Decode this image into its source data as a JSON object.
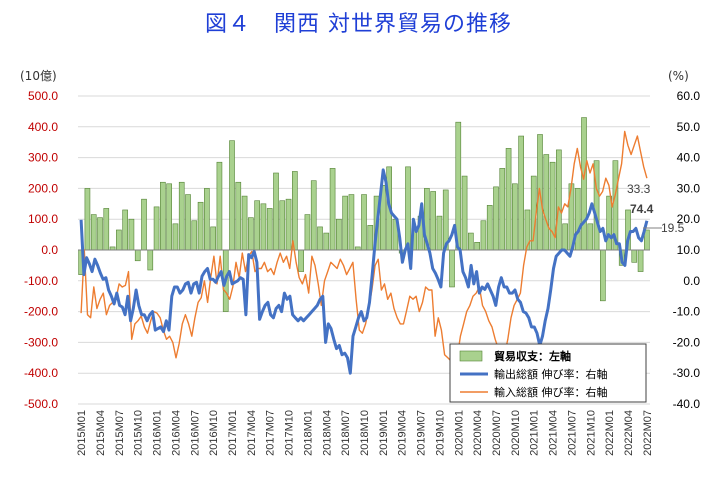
{
  "chart_data": {
    "type": "bar+line",
    "title": "図４　関西 対世界貿易の推移",
    "left_unit": "(10億)",
    "right_unit": "(%)",
    "ylim_left": [
      -500,
      500
    ],
    "ylim_right": [
      -40,
      60
    ],
    "left_ticks": [
      "500.0",
      "400.0",
      "300.0",
      "200.0",
      "100.0",
      "0.0",
      "-100.0",
      "-200.0",
      "-300.0",
      "-400.0",
      "-500.0"
    ],
    "right_ticks": [
      "60.0",
      "50.0",
      "40.0",
      "30.0",
      "20.0",
      "10.0",
      "0.0",
      "-10.0",
      "-20.0",
      "-30.0",
      "-40.0"
    ],
    "x_start": {
      "year": 2015,
      "month": 1
    },
    "x_labels": [
      "2015M01",
      "2015M04",
      "2015M07",
      "2015M10",
      "2016M01",
      "2016M04",
      "2016M07",
      "2016M10",
      "2017M01",
      "2017M04",
      "2017M07",
      "2017M10",
      "2018M01",
      "2018M04",
      "2018M07",
      "2018M10",
      "2019M01",
      "2019M04",
      "2019M07",
      "2019M10",
      "2020M01",
      "2020M04",
      "2020M07",
      "2020M10",
      "2021M01",
      "2021M04",
      "2021M07",
      "2021M10",
      "2022M01",
      "2022M04",
      "2022M07"
    ],
    "series": [
      {
        "name": "貿易収支：左軸",
        "type": "bar",
        "axis": "left",
        "color": "#a9d18e",
        "values": [
          -80,
          200,
          115,
          105,
          135,
          10,
          65,
          130,
          100,
          -35,
          165,
          -65,
          140,
          220,
          215,
          85,
          220,
          180,
          95,
          155,
          200,
          75,
          285,
          -200,
          355,
          220,
          175,
          105,
          160,
          150,
          135,
          250,
          160,
          165,
          255,
          -70,
          115,
          225,
          75,
          55,
          265,
          100,
          175,
          180,
          10,
          180,
          80,
          175,
          210,
          270,
          100,
          -10,
          270,
          70,
          110,
          200,
          190,
          110,
          195,
          -120,
          415,
          240,
          55,
          25,
          95,
          145,
          205,
          265,
          330,
          215,
          370,
          130,
          240,
          375,
          310,
          285,
          325,
          85,
          215,
          200,
          430,
          85,
          290,
          -165,
          175,
          290,
          -50,
          130,
          -40,
          -70,
          65
        ]
      },
      {
        "name": "輸出総額 伸び率：右軸",
        "type": "line",
        "axis": "right",
        "color": "#4472c4",
        "values": [
          19.8,
          2,
          7.5,
          5.5,
          3,
          7,
          5,
          2.5,
          0.5,
          1,
          -3,
          -5,
          -7.5,
          -4,
          -8,
          -8.5,
          -11,
          -5,
          -13,
          -9,
          -3,
          -8,
          -11,
          -11,
          -13,
          -11,
          -10,
          -16,
          -15.5,
          -15,
          -16.5,
          -13,
          -16,
          -5,
          -2,
          -2,
          -4,
          -3,
          -1,
          -0.5,
          -4,
          -1,
          -0.5,
          -4,
          1.5,
          3,
          4,
          0.5,
          0.5,
          -0.5,
          1.5,
          3,
          -1.5,
          1.5,
          3,
          -1,
          -0.5,
          0,
          1,
          0.5,
          -11,
          8.5,
          7.5,
          9.5,
          6,
          -12.5,
          -10,
          -8,
          -7,
          -11,
          -12,
          -9,
          -8,
          -10,
          -4,
          -6,
          -5,
          -11,
          -12,
          -13,
          -12,
          -13,
          -12,
          -11,
          -10,
          -9,
          -8,
          -6,
          -5,
          -20,
          -14,
          -15.5,
          -19,
          -22,
          -21,
          -24,
          -23.5,
          -25,
          -30,
          -18,
          -15,
          -12,
          -10,
          -13,
          -12,
          -7,
          2,
          12,
          20,
          28,
          36,
          32,
          25,
          22,
          21,
          20,
          14,
          6,
          10,
          12,
          4,
          20,
          16,
          18,
          25,
          15,
          12,
          9,
          4,
          2.5,
          0.5,
          -2,
          9,
          12,
          13,
          15,
          18,
          11,
          10,
          3,
          1,
          -2,
          5,
          -1,
          3,
          -4,
          -2,
          -2.8,
          -1,
          -3,
          -5,
          -8,
          -2,
          1,
          -2,
          -2,
          -4,
          -4,
          -3,
          -6,
          -7,
          -10,
          -10.5,
          -12,
          -15,
          -15,
          -17,
          -21,
          -18,
          -13,
          -9,
          -3,
          4,
          8,
          9,
          10,
          10,
          9,
          8,
          11,
          15,
          16,
          18,
          19,
          20,
          22,
          25,
          22,
          19,
          16,
          17,
          13,
          15,
          14,
          15,
          12,
          12,
          6,
          5,
          13,
          16,
          16,
          17,
          14,
          13,
          16,
          19.5
        ]
      },
      {
        "name": "輸入総額 伸び率：右軸",
        "type": "line",
        "axis": "right",
        "color": "#ed7d31",
        "values": [
          -10.5,
          10,
          -11,
          -12,
          -2,
          -9,
          -6,
          -4,
          -11,
          -8,
          -7,
          -6,
          -1,
          -2,
          -1.5,
          3,
          -19,
          -14,
          -13,
          -11.5,
          -15,
          -17,
          -13,
          -10,
          -10.5,
          -12,
          -16,
          -19,
          -18,
          -20,
          -25,
          -20.5,
          -14,
          -11,
          -14,
          -18,
          -12,
          -7,
          -5.5,
          0,
          -7,
          1,
          8,
          -1,
          8,
          -2.8,
          -4,
          -6,
          -2,
          6,
          1,
          9,
          3,
          8,
          9.5,
          3,
          4,
          4,
          6,
          3,
          4,
          2,
          6,
          9,
          6,
          8,
          4,
          13,
          6,
          1,
          -1,
          2,
          -4,
          8,
          5,
          -1,
          -8,
          0,
          3,
          6,
          5,
          4,
          7,
          5,
          2,
          4,
          6,
          -6,
          -16,
          -17,
          -14,
          -9,
          -3,
          5,
          7,
          -3,
          -1,
          -6,
          -4,
          -9,
          -12,
          -14,
          -14,
          -9.5,
          -5,
          -6,
          -5,
          -10,
          -7,
          -2,
          -3,
          -3,
          -18,
          -12,
          -16,
          -24,
          -25,
          -26,
          -30,
          -25,
          -18,
          -14,
          -10,
          -8,
          -5,
          -4,
          -2,
          -8,
          -10,
          -13,
          -15,
          -19,
          -22,
          -27,
          -24,
          -19,
          -12,
          -8,
          -6,
          -4,
          5,
          11,
          13,
          13,
          22,
          30,
          23,
          20,
          17,
          16,
          14,
          24,
          22,
          25,
          24,
          30,
          38,
          43,
          37,
          33,
          39,
          35,
          38,
          30,
          27.5,
          29,
          33.3,
          31,
          24,
          28,
          33,
          38,
          48.5,
          44,
          41,
          44,
          47,
          42,
          37,
          33.3
        ]
      }
    ],
    "annotations": [
      "33.3",
      "74.4",
      "19.5"
    ],
    "legend_position": "bottom-right"
  }
}
